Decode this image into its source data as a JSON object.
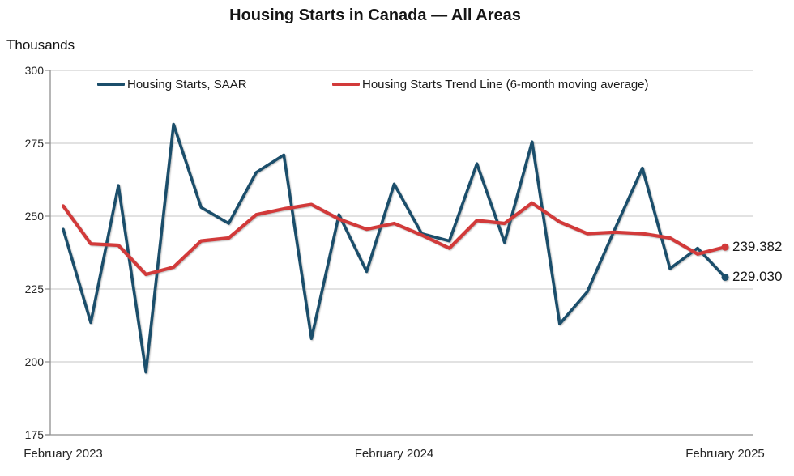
{
  "chart_data": {
    "type": "line",
    "title": "Housing Starts in Canada — All Areas",
    "ylabel": "Thousands",
    "ylim": [
      175,
      300
    ],
    "yticks": [
      300,
      275,
      250,
      225,
      200,
      175
    ],
    "grid": true,
    "legend_position": "top-inside",
    "x": [
      "Feb 2023",
      "Mar 2023",
      "Apr 2023",
      "May 2023",
      "Jun 2023",
      "Jul 2023",
      "Aug 2023",
      "Sep 2023",
      "Oct 2023",
      "Nov 2023",
      "Dec 2023",
      "Jan 2024",
      "Feb 2024",
      "Mar 2024",
      "Apr 2024",
      "May 2024",
      "Jun 2024",
      "Jul 2024",
      "Aug 2024",
      "Sep 2024",
      "Oct 2024",
      "Nov 2024",
      "Dec 2024",
      "Jan 2025",
      "Feb 2025"
    ],
    "xticks": [
      "February 2023",
      "February 2024",
      "February 2025"
    ],
    "xtick_indices": [
      0,
      12,
      24
    ],
    "series": [
      {
        "name": "Housing Starts, SAAR",
        "color": "#1b4e6b",
        "end_label": "229.030",
        "values": [
          245.5,
          213.5,
          260.5,
          196.5,
          281.5,
          253,
          247.5,
          265,
          271,
          208,
          250.5,
          231,
          261,
          244,
          241.5,
          268,
          241,
          275.5,
          213,
          224,
          245.5,
          266.5,
          232,
          239,
          229.03
        ]
      },
      {
        "name": "Housing Starts Trend Line (6-month moving average)",
        "color": "#d23a3a",
        "end_label": "239.382",
        "values": [
          253.5,
          240.5,
          240,
          230,
          232.5,
          241.5,
          242.5,
          250.5,
          252.5,
          254,
          249,
          245.5,
          247.5,
          243.5,
          239,
          248.5,
          247.5,
          254.5,
          248,
          244,
          244.5,
          244,
          242.5,
          237,
          239.382
        ]
      }
    ],
    "axis_color": "#8f8f8f",
    "grid_color": "#c6c6c6"
  }
}
